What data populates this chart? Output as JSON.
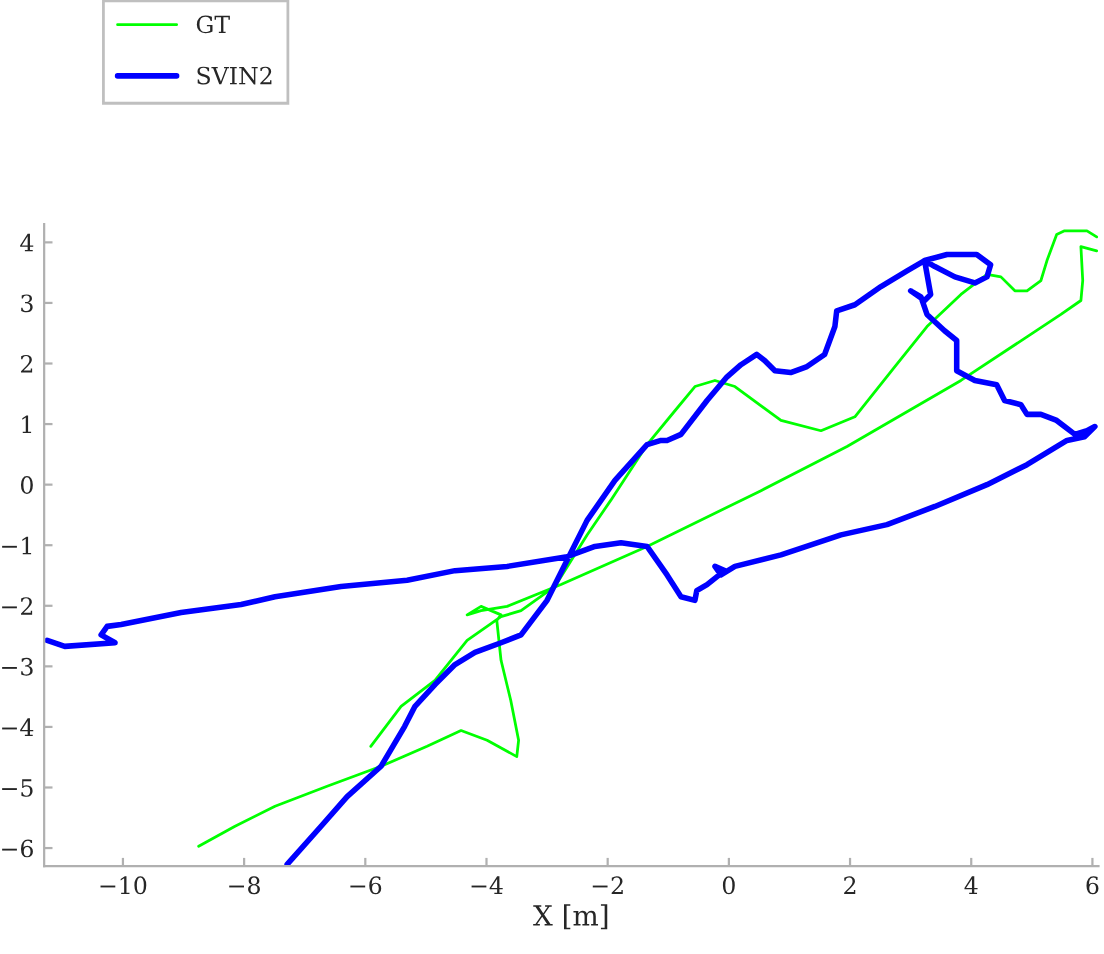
{
  "chart_data": {
    "type": "line",
    "xlabel": "X [m]",
    "xlim": [
      -11.3,
      6.1
    ],
    "ylim": [
      -6.3,
      4.3
    ],
    "xticks": [
      -10,
      -8,
      -6,
      -4,
      -2,
      0,
      2,
      4,
      6
    ],
    "yticks": [
      -6,
      -5,
      -4,
      -3,
      -2,
      -1,
      0,
      1,
      2,
      3,
      4
    ],
    "grid": false,
    "legend": "top left",
    "marker": "none",
    "line_style": "solid",
    "series": [
      {
        "name": "GT",
        "color": "#00ff00",
        "x": [
          -5.91,
          -5.41,
          -4.85,
          -4.32,
          -3.76,
          -3.43,
          -2.87,
          -2.34,
          -1.95,
          -1.35,
          -0.89,
          -0.56,
          -0.23,
          0.1,
          0.86,
          1.52,
          2.08,
          2.74,
          3.27,
          3.83,
          4.26,
          4.49,
          4.72,
          4.92,
          5.15,
          5.25,
          5.41,
          5.54,
          5.91,
          6.07,
          null,
          6.07,
          5.81,
          5.84,
          5.81,
          5.48,
          3.83,
          1.95,
          0.53,
          -1.35,
          -2.77,
          -3.66,
          -4.09,
          -4.32,
          -4.09,
          -3.76,
          -3.83,
          -3.76,
          -3.6,
          -3.47,
          -3.5,
          -3.99,
          -4.42,
          -4.98,
          -5.74,
          -6.63,
          -7.49,
          -8.15,
          -8.75
        ],
        "values": [
          -4.32,
          -3.66,
          -3.23,
          -2.57,
          -2.18,
          -2.08,
          -1.68,
          -0.83,
          -0.26,
          0.66,
          1.22,
          1.62,
          1.72,
          1.62,
          1.06,
          0.89,
          1.12,
          1.95,
          2.61,
          3.14,
          3.47,
          3.43,
          3.2,
          3.2,
          3.37,
          3.7,
          4.13,
          4.19,
          4.19,
          4.09,
          null,
          3.86,
          3.93,
          3.37,
          3.04,
          2.81,
          1.72,
          0.63,
          -0.1,
          -1.02,
          -1.65,
          -2.01,
          -2.08,
          -2.15,
          -2.01,
          -2.15,
          -2.24,
          -2.9,
          -3.56,
          -4.22,
          -4.49,
          -4.22,
          -4.06,
          -4.32,
          -4.65,
          -4.98,
          -5.31,
          -5.64,
          -5.97
        ]
      },
      {
        "name": "SVIN2",
        "color": "#0000ff",
        "x": [
          -11.25,
          -10.96,
          -10.13,
          -10.36,
          -10.26,
          -10.03,
          -9.04,
          -8.05,
          -7.49,
          -6.4,
          -5.31,
          -4.52,
          -3.66,
          -2.67,
          -2.21,
          -1.78,
          -1.35,
          -1.02,
          -0.79,
          -0.56,
          -0.53,
          -0.36,
          -0.07,
          -0.23,
          -0.13,
          0.1,
          0.86,
          1.85,
          2.61,
          3.4,
          4.26,
          4.92,
          5.58,
          5.87,
          6.04,
          5.91,
          5.71,
          5.54,
          5.41,
          5.15,
          4.92,
          4.82,
          4.55,
          4.42,
          4.06,
          3.76,
          3.76,
          3.56,
          3.27,
          3.17,
          3.0,
          3.23,
          3.33,
          3.23,
          3.4,
          3.73,
          4.06,
          4.26,
          4.32,
          4.09,
          3.6,
          3.23,
          2.94,
          2.51,
          2.08,
          1.78,
          1.75,
          1.58,
          1.29,
          1.02,
          0.76,
          0.59,
          0.46,
          0.2,
          -0.03,
          -0.36,
          -0.79,
          -1.02,
          -1.12,
          -1.35,
          -1.88,
          -2.34,
          -2.67,
          -3.0,
          -3.43,
          -3.76,
          -4.19,
          -4.52,
          -4.85,
          -5.18,
          -5.35,
          -5.74,
          -6.3,
          -6.73,
          -7.29
        ],
        "values": [
          -2.57,
          -2.67,
          -2.61,
          -2.48,
          -2.34,
          -2.31,
          -2.11,
          -1.98,
          -1.85,
          -1.68,
          -1.58,
          -1.42,
          -1.35,
          -1.19,
          -1.02,
          -0.96,
          -1.02,
          -1.49,
          -1.85,
          -1.91,
          -1.75,
          -1.65,
          -1.42,
          -1.35,
          -1.49,
          -1.35,
          -1.16,
          -0.83,
          -0.66,
          -0.36,
          0.0,
          0.33,
          0.73,
          0.79,
          0.96,
          0.89,
          0.83,
          0.96,
          1.06,
          1.16,
          1.16,
          1.32,
          1.39,
          1.65,
          1.72,
          1.88,
          2.38,
          2.54,
          2.81,
          3.1,
          3.2,
          3.04,
          3.14,
          3.7,
          3.6,
          3.43,
          3.33,
          3.43,
          3.63,
          3.8,
          3.8,
          3.7,
          3.53,
          3.27,
          2.97,
          2.87,
          2.61,
          2.15,
          1.95,
          1.85,
          1.88,
          2.05,
          2.15,
          1.98,
          1.78,
          1.39,
          0.83,
          0.73,
          0.73,
          0.66,
          0.07,
          -0.59,
          -1.25,
          -1.91,
          -2.48,
          -2.61,
          -2.77,
          -2.97,
          -3.3,
          -3.66,
          -3.99,
          -4.65,
          -5.15,
          -5.64,
          -6.27
        ]
      }
    ]
  }
}
